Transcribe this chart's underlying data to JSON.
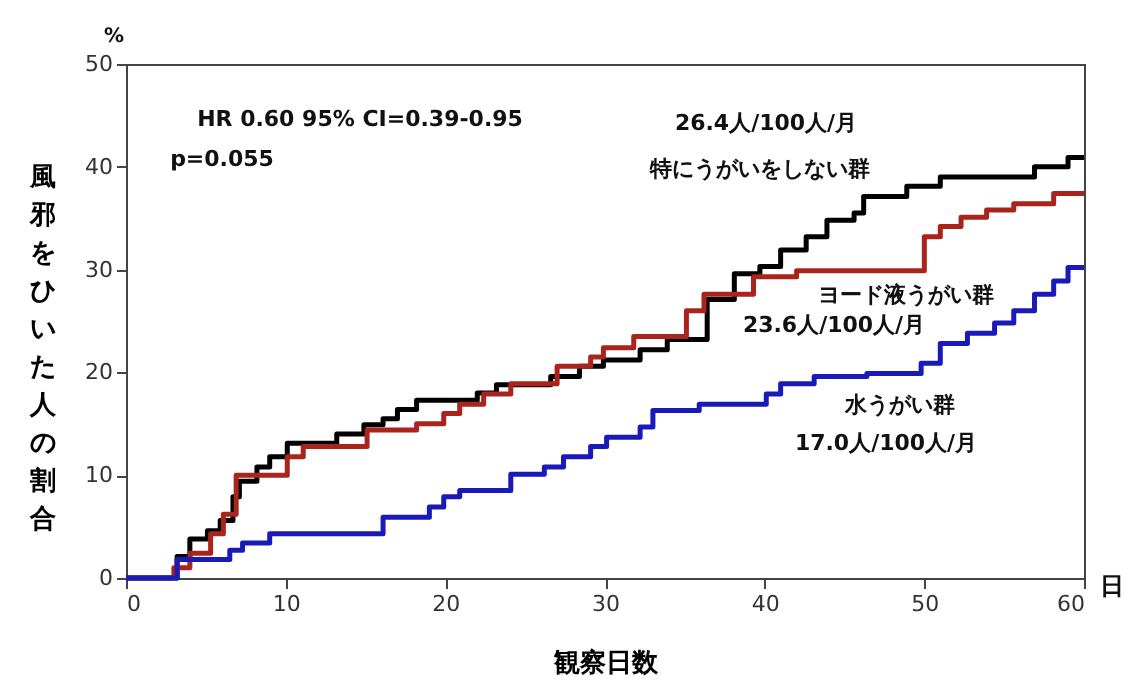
{
  "chart_data": {
    "type": "step",
    "xlabel": "観察日数",
    "ylabel": "風邪をひいた人の割合",
    "xlim": [
      0,
      60
    ],
    "xticks": [
      0,
      10,
      20,
      30,
      40,
      50,
      60
    ],
    "ylim": [
      0,
      50
    ],
    "yticks": [
      0,
      10,
      20,
      30,
      40,
      50
    ],
    "grid": false,
    "legend": false,
    "marker": "none",
    "line_style": "solid",
    "series": [
      {
        "name": "特にうがいをしない群",
        "color": "#000000",
        "x": [
          0,
          3.2,
          4.0,
          5.1,
          5.9,
          6.7,
          7.1,
          8.2,
          9.0,
          10.1,
          13.2,
          14.9,
          16.1,
          17.0,
          18.2,
          22.0,
          23.2,
          26.6,
          28.4,
          29.9,
          32.2,
          33.9,
          36.4,
          38.1,
          39.7,
          41.0,
          42.6,
          43.9,
          45.6,
          46.2,
          48.9,
          51.0,
          56.9,
          59.0,
          60
        ],
        "values": [
          0,
          2.1,
          3.8,
          4.6,
          5.6,
          7.9,
          9.4,
          10.8,
          11.8,
          13.1,
          14.0,
          14.9,
          15.5,
          16.4,
          17.3,
          18.0,
          18.8,
          19.6,
          20.6,
          21.2,
          22.2,
          23.2,
          27.1,
          29.6,
          30.3,
          31.9,
          33.2,
          34.8,
          35.5,
          37.1,
          38.1,
          39.0,
          40.0,
          40.9,
          40.9
        ]
      },
      {
        "name": "ヨード液うがい群",
        "color": "#a8241c",
        "x": [
          0,
          3.0,
          4.0,
          5.3,
          6.1,
          6.9,
          10.1,
          11.1,
          15.1,
          18.2,
          19.9,
          20.9,
          22.4,
          24.1,
          27.0,
          29.1,
          29.9,
          31.8,
          35.1,
          36.2,
          39.3,
          42.0,
          50.0,
          51.0,
          52.3,
          53.9,
          55.6,
          58.1,
          60
        ],
        "values": [
          0,
          1.0,
          2.4,
          4.3,
          6.2,
          10.0,
          11.8,
          12.8,
          14.4,
          15.0,
          16.0,
          16.9,
          17.9,
          18.9,
          20.6,
          21.5,
          22.4,
          23.5,
          26.0,
          27.6,
          29.3,
          29.9,
          33.2,
          34.2,
          35.1,
          35.8,
          36.4,
          37.4,
          37.4
        ]
      },
      {
        "name": "水うがい群",
        "color": "#1a1ab8",
        "x": [
          0,
          3.2,
          6.5,
          7.3,
          9.0,
          16.1,
          19.0,
          19.9,
          20.9,
          24.1,
          26.2,
          27.4,
          29.1,
          30.1,
          32.2,
          33.0,
          35.9,
          40.1,
          41.0,
          43.1,
          46.4,
          49.8,
          51.0,
          52.7,
          54.4,
          55.6,
          56.9,
          58.1,
          59.0,
          60
        ],
        "values": [
          0,
          1.8,
          2.7,
          3.4,
          4.3,
          5.9,
          6.9,
          7.9,
          8.5,
          10.1,
          10.8,
          11.8,
          12.8,
          13.7,
          14.7,
          16.3,
          16.9,
          17.9,
          18.9,
          19.6,
          19.9,
          20.9,
          22.8,
          23.8,
          24.8,
          26.0,
          27.6,
          28.9,
          30.2,
          30.2
        ]
      }
    ],
    "annotations": [
      "HR 0.60 95% CI=0.39-0.95",
      "p=0.055",
      "26.4人/100人/月",
      "23.6人/100人/月",
      "17.0人/100人/月",
      "%",
      "日"
    ]
  }
}
